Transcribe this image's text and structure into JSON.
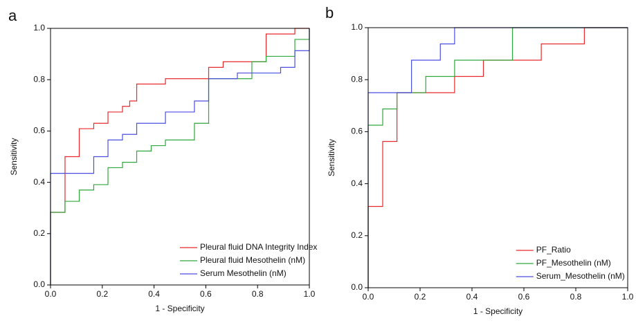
{
  "chart_data": [
    {
      "type": "step",
      "panel_label": "a",
      "xlabel": "1 - Specificity",
      "ylabel": "Sensitivity",
      "xlim": [
        0,
        1
      ],
      "ylim": [
        0,
        1
      ],
      "xticks": [
        {
          "value": 0,
          "label": "0.0"
        },
        0.2,
        0.4,
        0.6,
        0.8,
        {
          "value": 1,
          "label": "1.0"
        }
      ],
      "yticks": [
        {
          "value": 0,
          "label": "0.0"
        },
        0.2,
        0.4,
        0.6,
        0.8,
        {
          "value": 1,
          "label": "1.0"
        }
      ],
      "legend": "lower right",
      "series": [
        {
          "name": "Pleural fluid DNA Integrity Index",
          "color": "#e8292b",
          "x": [
            0,
            0,
            0.056,
            0.056,
            0.111,
            0.111,
            0.167,
            0.167,
            0.222,
            0.222,
            0.278,
            0.278,
            0.306,
            0.306,
            0.333,
            0.333,
            0.444,
            0.444,
            0.611,
            0.611,
            0.667,
            0.667,
            0.833,
            0.833,
            0.944,
            0.944,
            1
          ],
          "values": [
            0,
            0.283,
            0.283,
            0.5,
            0.5,
            0.609,
            0.609,
            0.63,
            0.63,
            0.674,
            0.674,
            0.696,
            0.696,
            0.717,
            0.717,
            0.783,
            0.783,
            0.804,
            0.804,
            0.848,
            0.848,
            0.87,
            0.87,
            0.978,
            0.978,
            1,
            1
          ]
        },
        {
          "name": "Pleural fluid Mesothelin (nM)",
          "color": "#2ea83a",
          "x": [
            0,
            0,
            0.056,
            0.056,
            0.111,
            0.111,
            0.167,
            0.167,
            0.222,
            0.222,
            0.278,
            0.278,
            0.333,
            0.333,
            0.389,
            0.389,
            0.444,
            0.444,
            0.556,
            0.556,
            0.611,
            0.611,
            0.778,
            0.778,
            0.833,
            0.833,
            0.944,
            0.944,
            1,
            1
          ],
          "values": [
            0,
            0.283,
            0.283,
            0.326,
            0.326,
            0.37,
            0.37,
            0.391,
            0.391,
            0.457,
            0.457,
            0.478,
            0.478,
            0.522,
            0.522,
            0.543,
            0.543,
            0.565,
            0.565,
            0.63,
            0.63,
            0.804,
            0.804,
            0.87,
            0.87,
            0.891,
            0.891,
            0.957,
            0.957,
            1
          ]
        },
        {
          "name": "Serum Mesothelin (nM)",
          "color": "#4a4ee0",
          "x": [
            0,
            0,
            0.167,
            0.167,
            0.222,
            0.222,
            0.278,
            0.278,
            0.333,
            0.333,
            0.444,
            0.444,
            0.556,
            0.556,
            0.611,
            0.611,
            0.722,
            0.722,
            0.889,
            0.889,
            0.944,
            0.944,
            1,
            1
          ],
          "values": [
            0,
            0.435,
            0.435,
            0.5,
            0.5,
            0.565,
            0.565,
            0.587,
            0.587,
            0.63,
            0.63,
            0.674,
            0.674,
            0.717,
            0.717,
            0.804,
            0.804,
            0.826,
            0.826,
            0.848,
            0.848,
            0.913,
            0.913,
            1
          ]
        }
      ]
    },
    {
      "type": "step",
      "panel_label": "b",
      "xlabel": "1 - Specificity",
      "ylabel": "Sensitivity",
      "xlim": [
        0,
        1
      ],
      "ylim": [
        0,
        1
      ],
      "xticks": [
        {
          "value": 0,
          "label": "0.0"
        },
        0.2,
        0.4,
        0.6,
        0.8,
        {
          "value": 1,
          "label": "1.0"
        }
      ],
      "yticks": [
        {
          "value": 0,
          "label": "0.0"
        },
        0.2,
        0.4,
        0.6,
        0.8,
        {
          "value": 1,
          "label": "1.0"
        }
      ],
      "legend": "lower right",
      "series": [
        {
          "name": "PF_Ratio",
          "color": "#e8292b",
          "x": [
            0,
            0,
            0.056,
            0.056,
            0.111,
            0.111,
            0.333,
            0.333,
            0.444,
            0.444,
            0.667,
            0.667,
            0.833,
            0.833,
            1
          ],
          "values": [
            0,
            0.3125,
            0.3125,
            0.5625,
            0.5625,
            0.75,
            0.75,
            0.8125,
            0.8125,
            0.875,
            0.875,
            0.9375,
            0.9375,
            1,
            1
          ]
        },
        {
          "name": "PF_Mesothelin (nM)",
          "color": "#2ea83a",
          "x": [
            0,
            0,
            0.056,
            0.056,
            0.111,
            0.111,
            0.222,
            0.222,
            0.333,
            0.333,
            0.556,
            0.556,
            1
          ],
          "values": [
            0,
            0.625,
            0.625,
            0.6875,
            0.6875,
            0.75,
            0.75,
            0.8125,
            0.8125,
            0.875,
            0.875,
            1,
            1
          ]
        },
        {
          "name": "Serum_Mesothelin (nM)",
          "color": "#4a4ee0",
          "x": [
            0,
            0,
            0.167,
            0.167,
            0.278,
            0.278,
            0.333,
            0.333,
            1
          ],
          "values": [
            0,
            0.75,
            0.75,
            0.875,
            0.875,
            0.9375,
            0.9375,
            1,
            1
          ]
        }
      ]
    }
  ]
}
